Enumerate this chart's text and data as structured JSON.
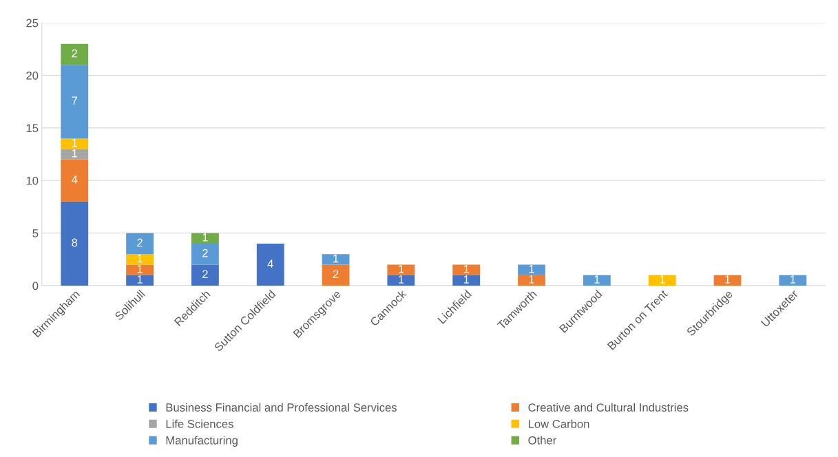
{
  "chart_data": {
    "type": "bar",
    "stacked": true,
    "data_labels": true,
    "grid": "y",
    "legend": "bottom",
    "categories": [
      "Birmingham",
      "Solihull",
      "Redditch",
      "Sutton Coldfield",
      "Bromsgrove",
      "Cannock",
      "Lichfield",
      "Tamworth",
      "Burntwood",
      "Burton on Trent",
      "Stourbridge",
      "Uttoxeter"
    ],
    "ylim": [
      0,
      25
    ],
    "yticks": [
      0,
      5,
      10,
      15,
      20,
      25
    ],
    "series": [
      {
        "name": "Business Financial and Professional Services",
        "color": "#4472c4",
        "values": [
          8,
          1,
          2,
          4,
          null,
          1,
          1,
          null,
          null,
          null,
          null,
          null
        ]
      },
      {
        "name": "Creative and Cultural Industries",
        "color": "#ed7d31",
        "values": [
          4,
          1,
          null,
          null,
          2,
          1,
          1,
          1,
          null,
          null,
          1,
          null
        ]
      },
      {
        "name": "Life Sciences",
        "color": "#a5a5a5",
        "values": [
          1,
          null,
          null,
          null,
          null,
          null,
          null,
          null,
          null,
          null,
          null,
          null
        ]
      },
      {
        "name": "Low Carbon",
        "color": "#ffc000",
        "values": [
          1,
          1,
          null,
          null,
          null,
          null,
          null,
          null,
          null,
          1,
          null,
          null
        ]
      },
      {
        "name": "Manufacturing",
        "color": "#5b9bd5",
        "values": [
          7,
          2,
          2,
          null,
          1,
          null,
          null,
          1,
          1,
          null,
          null,
          1
        ]
      },
      {
        "name": "Other",
        "color": "#70ad47",
        "values": [
          2,
          null,
          1,
          null,
          null,
          null,
          null,
          null,
          null,
          null,
          null,
          null
        ]
      }
    ]
  }
}
